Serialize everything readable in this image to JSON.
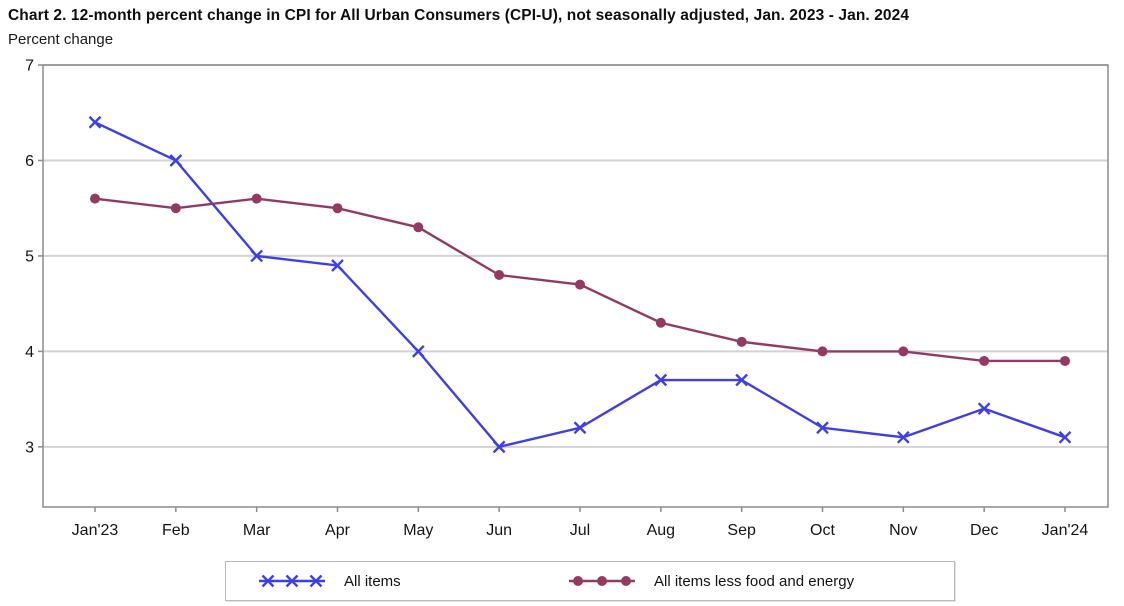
{
  "chart_data": {
    "type": "line",
    "title": "Chart 2. 12-month percent change in CPI for All Urban Consumers (CPI-U), not seasonally adjusted, Jan. 2023 - Jan. 2024",
    "ylabel": "Percent change",
    "xlabel": "",
    "categories": [
      "Jan'23",
      "Feb",
      "Mar",
      "Apr",
      "May",
      "Jun",
      "Jul",
      "Aug",
      "Sep",
      "Oct",
      "Nov",
      "Dec",
      "Jan'24"
    ],
    "series": [
      {
        "name": "All items",
        "marker": "x",
        "color": "#3f3fe8",
        "values": [
          6.4,
          6.0,
          5.0,
          4.9,
          4.0,
          3.0,
          3.2,
          3.7,
          3.7,
          3.2,
          3.1,
          3.4,
          3.1
        ]
      },
      {
        "name": "All items less food and energy",
        "marker": "dot",
        "color": "#943a62",
        "values": [
          5.6,
          5.5,
          5.6,
          5.5,
          5.3,
          4.8,
          4.7,
          4.3,
          4.1,
          4.0,
          4.0,
          3.9,
          3.9
        ]
      }
    ],
    "yticks": [
      3,
      4,
      5,
      6,
      7
    ],
    "ylim": [
      2.37,
      7
    ],
    "grid": true,
    "legend_position": "bottom"
  },
  "style_colors": {
    "grid_line": "#d2d2d2",
    "frame": "#8c8c8c",
    "tick": "#8c8c8c",
    "axis_text": "#141414"
  }
}
